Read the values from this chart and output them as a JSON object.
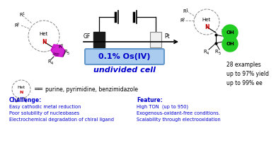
{
  "bg_color": "#ffffff",
  "os_text": "0.1% Os(IV)",
  "undivided_text": "undivided cell",
  "blue_color": "#0000cc",
  "challenge_header": "Challenge:",
  "challenge_lines": [
    "Easy cathodic metal reduction",
    "Poor solubility of nucleobases",
    "Electrochemical degradation of chiral ligand"
  ],
  "feature_header": "Feature:",
  "feature_lines": [
    "High TON  (up to 950)",
    "Exogenous-oxidant-free conditions.",
    "Scalability through electrooxidation"
  ],
  "examples_text": "28 examples\nup to 97% yield\nup to 99% ee",
  "het_def": "purine, pyrimidine, benzimidazole",
  "gf_label": "GF",
  "pt_label": "Pt",
  "magenta": "#cc00cc",
  "red_n": "#cc0000",
  "green_oh": "#22cc22",
  "green_light": "#88ee88",
  "darkblue": "#0000cd"
}
